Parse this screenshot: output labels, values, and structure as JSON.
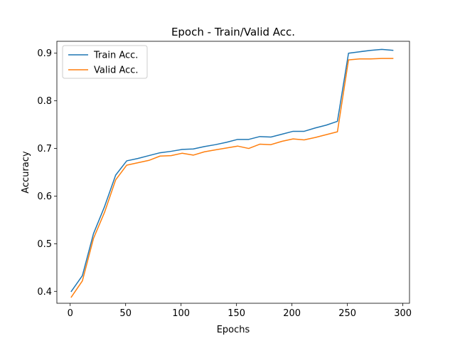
{
  "chart_data": {
    "type": "line",
    "title": "Epoch - Train/Valid Acc.",
    "xlabel": "Epochs",
    "ylabel": "Accuracy",
    "xlim": [
      -12,
      306
    ],
    "ylim": [
      0.375,
      0.925
    ],
    "xticks": [
      "0",
      "50",
      "100",
      "150",
      "200",
      "250",
      "300"
    ],
    "yticks": [
      "0.4",
      "0.5",
      "0.6",
      "0.7",
      "0.8",
      "0.9"
    ],
    "legend_position": "upper-left",
    "series": [
      {
        "name": "Train Acc.",
        "color": "#1f77b4",
        "x": [
          1,
          11,
          21,
          31,
          41,
          51,
          61,
          71,
          81,
          91,
          101,
          111,
          121,
          131,
          141,
          151,
          161,
          171,
          181,
          191,
          201,
          211,
          221,
          231,
          241,
          251,
          261,
          271,
          281,
          291
        ],
        "y": [
          0.4,
          0.433,
          0.521,
          0.578,
          0.644,
          0.674,
          0.679,
          0.685,
          0.691,
          0.694,
          0.698,
          0.699,
          0.704,
          0.708,
          0.713,
          0.719,
          0.719,
          0.725,
          0.724,
          0.73,
          0.736,
          0.736,
          0.743,
          0.749,
          0.757,
          0.9,
          0.903,
          0.906,
          0.908,
          0.906
        ]
      },
      {
        "name": "Valid Acc.",
        "color": "#ff7f0e",
        "x": [
          1,
          11,
          21,
          31,
          41,
          51,
          61,
          71,
          81,
          91,
          101,
          111,
          121,
          131,
          141,
          151,
          161,
          171,
          181,
          191,
          201,
          211,
          221,
          231,
          241,
          251,
          261,
          271,
          281,
          291
        ],
        "y": [
          0.388,
          0.422,
          0.511,
          0.566,
          0.634,
          0.665,
          0.67,
          0.675,
          0.684,
          0.685,
          0.69,
          0.686,
          0.693,
          0.697,
          0.701,
          0.705,
          0.7,
          0.709,
          0.708,
          0.715,
          0.72,
          0.718,
          0.723,
          0.729,
          0.735,
          0.886,
          0.888,
          0.888,
          0.889,
          0.889
        ]
      }
    ]
  }
}
